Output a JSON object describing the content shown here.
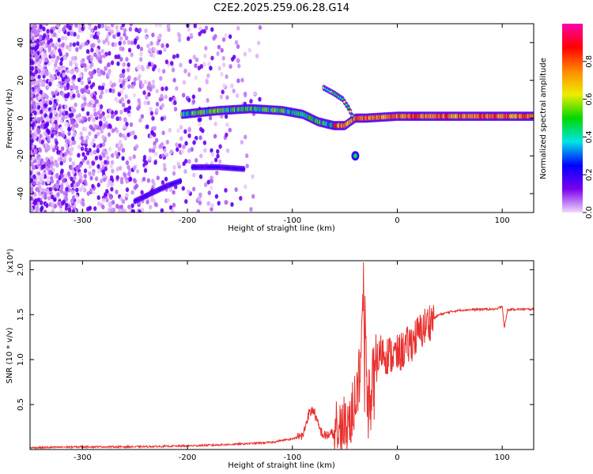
{
  "title": "C2E2.2025.259.06.28.G14",
  "chart_data": [
    {
      "type": "heatmap",
      "xlabel": "Height of straight line (km)",
      "ylabel": "Frequency (Hz)",
      "xlim": [
        -350,
        130
      ],
      "ylim": [
        -50,
        50
      ],
      "xticks": [
        -300,
        -200,
        -100,
        0,
        100
      ],
      "yticks": [
        -40,
        -20,
        0,
        20,
        40
      ],
      "colorbar": {
        "label": "Normalized spectral amplitude",
        "range": [
          0,
          1
        ],
        "ticks": [
          "0.0",
          "0.2",
          "0.4",
          "0.6",
          "0.8"
        ],
        "tick_values": [
          0.0,
          0.2,
          0.4,
          0.6,
          0.8
        ],
        "colors": [
          "#f2d8fb",
          "#7b00ee",
          "#0000ff",
          "#00e5e5",
          "#00d800",
          "#eeee00",
          "#ff8800",
          "#ff0000",
          "#ff00aa"
        ]
      },
      "features": [
        {
          "name": "main-tone",
          "x": [
            -205,
            -170,
            -140,
            -110,
            -90,
            -75,
            -60,
            -50,
            -40,
            -30,
            0,
            50,
            100,
            130
          ],
          "y": [
            2,
            4,
            5,
            4,
            2,
            -2,
            -4,
            -4,
            0,
            0,
            1,
            1,
            1,
            1
          ]
        },
        {
          "name": "upper-branch",
          "x": [
            -70,
            -60,
            -52,
            -46,
            -42
          ],
          "y": [
            16,
            13,
            10,
            5,
            0
          ]
        },
        {
          "name": "lower-branch",
          "x": [
            -250,
            -235,
            -220,
            -205
          ],
          "y": [
            -44,
            -40,
            -36,
            -33
          ]
        },
        {
          "name": "secondary-band",
          "x": [
            -195,
            -170,
            -145
          ],
          "y": [
            -26,
            -26,
            -27
          ]
        },
        {
          "name": "isolated-blob",
          "x": [
            -40
          ],
          "y": [
            -20
          ]
        }
      ]
    },
    {
      "type": "line",
      "xlabel": "Height of straight line (km)",
      "ylabel": "SNR (10 * v/v)",
      "y_multiplier": "(x10⁴)",
      "xlim": [
        -350,
        130
      ],
      "ylim": [
        0,
        2.1
      ],
      "xticks": [
        -300,
        -200,
        -100,
        0,
        100
      ],
      "yticks": [
        0.5,
        1.0,
        1.5,
        2.0
      ],
      "ytick_labels": [
        "0.5",
        "1.0",
        "1.5",
        "2.0"
      ],
      "color": "#e8302e",
      "series": [
        {
          "name": "SNR",
          "x": [
            -350,
            -300,
            -250,
            -200,
            -150,
            -120,
            -100,
            -90,
            -85,
            -80,
            -75,
            -70,
            -60,
            -50,
            -45,
            -40,
            -35,
            -31,
            -30,
            -28,
            -25,
            -20,
            -15,
            -10,
            0,
            10,
            20,
            30,
            40,
            50,
            60,
            80,
            95,
            100,
            102,
            105,
            110,
            120,
            130
          ],
          "y": [
            0.02,
            0.03,
            0.03,
            0.04,
            0.06,
            0.08,
            0.12,
            0.15,
            0.38,
            0.45,
            0.25,
            0.15,
            0.18,
            0.25,
            0.35,
            0.55,
            1.0,
            2.05,
            1.2,
            0.6,
            0.7,
            0.95,
            1.1,
            1.05,
            1.05,
            1.15,
            1.28,
            1.42,
            1.5,
            1.53,
            1.55,
            1.56,
            1.56,
            1.6,
            1.35,
            1.55,
            1.56,
            1.56,
            1.56
          ]
        }
      ]
    }
  ]
}
